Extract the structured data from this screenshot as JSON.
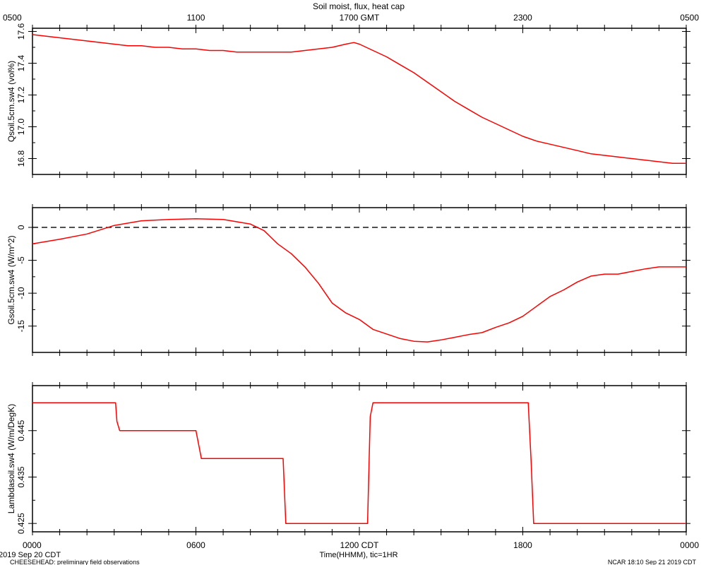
{
  "header": {
    "title": "Soil moist, flux, heat cap",
    "top_ticks": [
      "0500",
      "1100",
      "1700 GMT",
      "2300",
      "0500"
    ]
  },
  "footer": {
    "date_label": "2019 Sep 20 CDT",
    "project_label": "CHEESEHEAD: preliminary field observations",
    "xlabel": "Time(HHMM), tic=1HR",
    "credit": "NCAR 18:10 Sep 21 2019 CDT",
    "bottom_ticks": [
      "0000",
      "0600",
      "1200 CDT",
      "1800",
      "0000"
    ]
  },
  "colors": {
    "series": "#ff0000",
    "axis": "#000000"
  },
  "chart_data": [
    {
      "type": "line",
      "ylabel": "Qsoil.5cm.sw4 (vol%)",
      "xlim": [
        0,
        24
      ],
      "ylim": [
        16.7,
        17.62
      ],
      "yticks": [
        16.8,
        17.0,
        17.2,
        17.4,
        17.6
      ],
      "ytick_labels": [
        "16.8",
        "17.0",
        "17.2",
        "17.4",
        "17.6"
      ],
      "zero_line": false,
      "series": [
        {
          "x": [
            0,
            0.5,
            1,
            1.5,
            2,
            2.5,
            3,
            3.5,
            4,
            4.5,
            5,
            5.5,
            6,
            6.5,
            7,
            7.5,
            8,
            8.5,
            9,
            9.5,
            10,
            10.5,
            11,
            11.5,
            11.8,
            12,
            12.5,
            13,
            13.5,
            14,
            14.5,
            15,
            15.5,
            16,
            16.5,
            17,
            17.5,
            18,
            18.5,
            19,
            19.5,
            20,
            20.5,
            21,
            21.5,
            22,
            22.5,
            23,
            23.5,
            24
          ],
          "values": [
            17.58,
            17.57,
            17.56,
            17.55,
            17.54,
            17.53,
            17.52,
            17.51,
            17.51,
            17.5,
            17.5,
            17.49,
            17.49,
            17.48,
            17.48,
            17.47,
            17.47,
            17.47,
            17.47,
            17.47,
            17.48,
            17.49,
            17.5,
            17.52,
            17.53,
            17.52,
            17.48,
            17.44,
            17.39,
            17.34,
            17.28,
            17.22,
            17.16,
            17.11,
            17.06,
            17.02,
            16.98,
            16.94,
            16.91,
            16.89,
            16.87,
            16.85,
            16.83,
            16.82,
            16.81,
            16.8,
            16.79,
            16.78,
            16.77,
            16.77
          ]
        }
      ]
    },
    {
      "type": "line",
      "ylabel": "Gsoil.5cm.sw4 (W/m^2)",
      "xlim": [
        0,
        24
      ],
      "ylim": [
        -19,
        3
      ],
      "yticks": [
        -15,
        -10,
        -5,
        0
      ],
      "ytick_labels": [
        "-15",
        "-10",
        "-5",
        "0"
      ],
      "zero_line": true,
      "series": [
        {
          "x": [
            0,
            1,
            2,
            3,
            4,
            5,
            6,
            7,
            8,
            8.5,
            9,
            9.5,
            10,
            10.5,
            11,
            11.5,
            12,
            12.5,
            13,
            13.5,
            14,
            14.5,
            15,
            15.5,
            16,
            16.5,
            17,
            17.5,
            18,
            18.5,
            19,
            19.5,
            20,
            20.5,
            21,
            21.5,
            22,
            22.5,
            23,
            23.5,
            24
          ],
          "values": [
            -2.5,
            -1.8,
            -1.0,
            0.3,
            1.0,
            1.2,
            1.3,
            1.2,
            0.5,
            -0.5,
            -2.5,
            -4.0,
            -6.0,
            -8.5,
            -11.5,
            -13.0,
            -14.0,
            -15.5,
            -16.2,
            -16.9,
            -17.3,
            -17.4,
            -17.1,
            -16.7,
            -16.3,
            -16.0,
            -15.2,
            -14.5,
            -13.5,
            -12.0,
            -10.5,
            -9.5,
            -8.3,
            -7.4,
            -7.1,
            -7.1,
            -6.7,
            -6.3,
            -6.0,
            -6.0,
            -6.0
          ]
        }
      ]
    },
    {
      "type": "line",
      "ylabel": "Lambdasoil.sw4 (W/m/DegK)",
      "xlim": [
        0,
        24
      ],
      "ylim": [
        0.4232,
        0.4547
      ],
      "yticks": [
        0.425,
        0.435,
        0.445
      ],
      "ytick_labels": [
        "0.425",
        "0.435",
        "0.445"
      ],
      "zero_line": false,
      "series": [
        {
          "x": [
            0,
            3.05,
            3.1,
            3.2,
            6.0,
            6.1,
            6.2,
            9.1,
            9.2,
            9.3,
            12.3,
            12.4,
            12.5,
            18.2,
            18.3,
            18.4,
            24
          ],
          "values": [
            0.451,
            0.451,
            0.447,
            0.445,
            0.445,
            0.442,
            0.439,
            0.439,
            0.439,
            0.425,
            0.425,
            0.448,
            0.451,
            0.451,
            0.439,
            0.425,
            0.425
          ]
        }
      ]
    }
  ]
}
